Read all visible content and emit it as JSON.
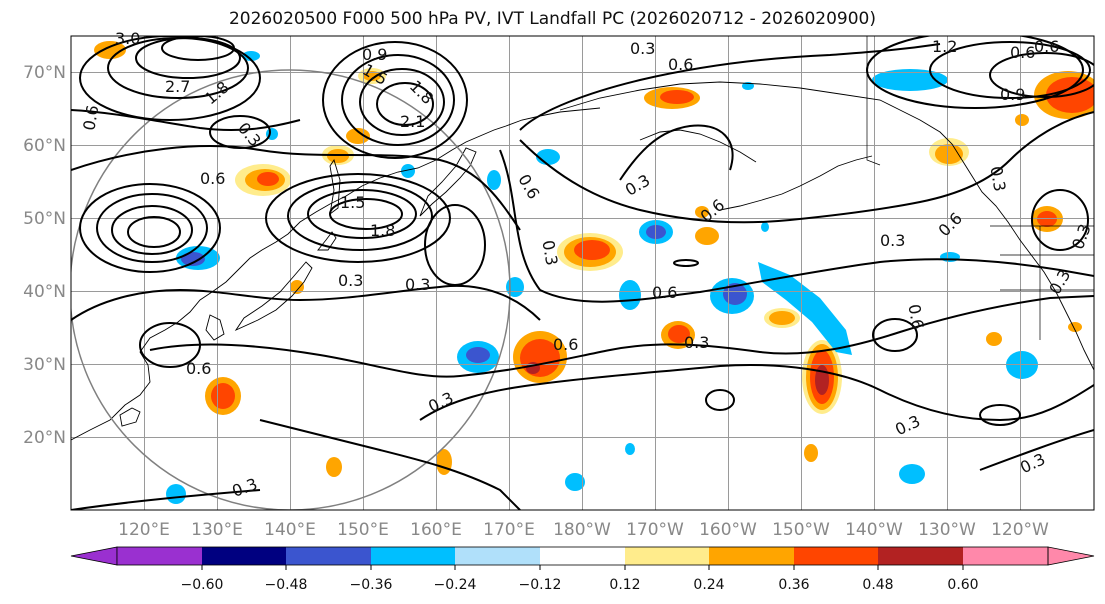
{
  "title": "2026020500 F000 500 hPa PV, IVT Landfall PC (2026020712 - 2026020900)",
  "map": {
    "lat_labels": [
      "70°N",
      "60°N",
      "50°N",
      "40°N",
      "30°N",
      "20°N"
    ],
    "lon_labels": [
      "120°E",
      "130°E",
      "140°E",
      "150°E",
      "160°E",
      "170°E",
      "180°W",
      "170°W",
      "160°W",
      "150°W",
      "140°W",
      "130°W",
      "120°W"
    ],
    "contour_labels": [
      "3.0",
      "2.7",
      "0.6",
      "1.8",
      "0.9",
      "1.5",
      "1.8",
      "2.1",
      "0.3",
      "0.6",
      "1.5",
      "1.8",
      "0.3",
      "0.3",
      "0.6",
      "0.3",
      "0.3",
      "0.6",
      "0.6",
      "0.3",
      "0.6",
      "0.3",
      "0.6",
      "0.6",
      "0.3",
      "0.6",
      "0.3",
      "0.3",
      "0.3",
      "1.2",
      "0.6",
      "0.9",
      "0.3",
      "0.6",
      "0.3",
      "0.3",
      "0.6",
      "0.3"
    ]
  },
  "colorbar": {
    "ticks": [
      "−0.60",
      "−0.48",
      "−0.36",
      "−0.24",
      "−0.12",
      "0.12",
      "0.24",
      "0.36",
      "0.48",
      "0.60"
    ],
    "colors": [
      "#9a30d0",
      "#000080",
      "#3b55cf",
      "#00bfff",
      "#b0e0fa",
      "#ffffff",
      "#ffec8c",
      "#ffa500",
      "#ff4500",
      "#b22222",
      "#ff88aa"
    ]
  }
}
